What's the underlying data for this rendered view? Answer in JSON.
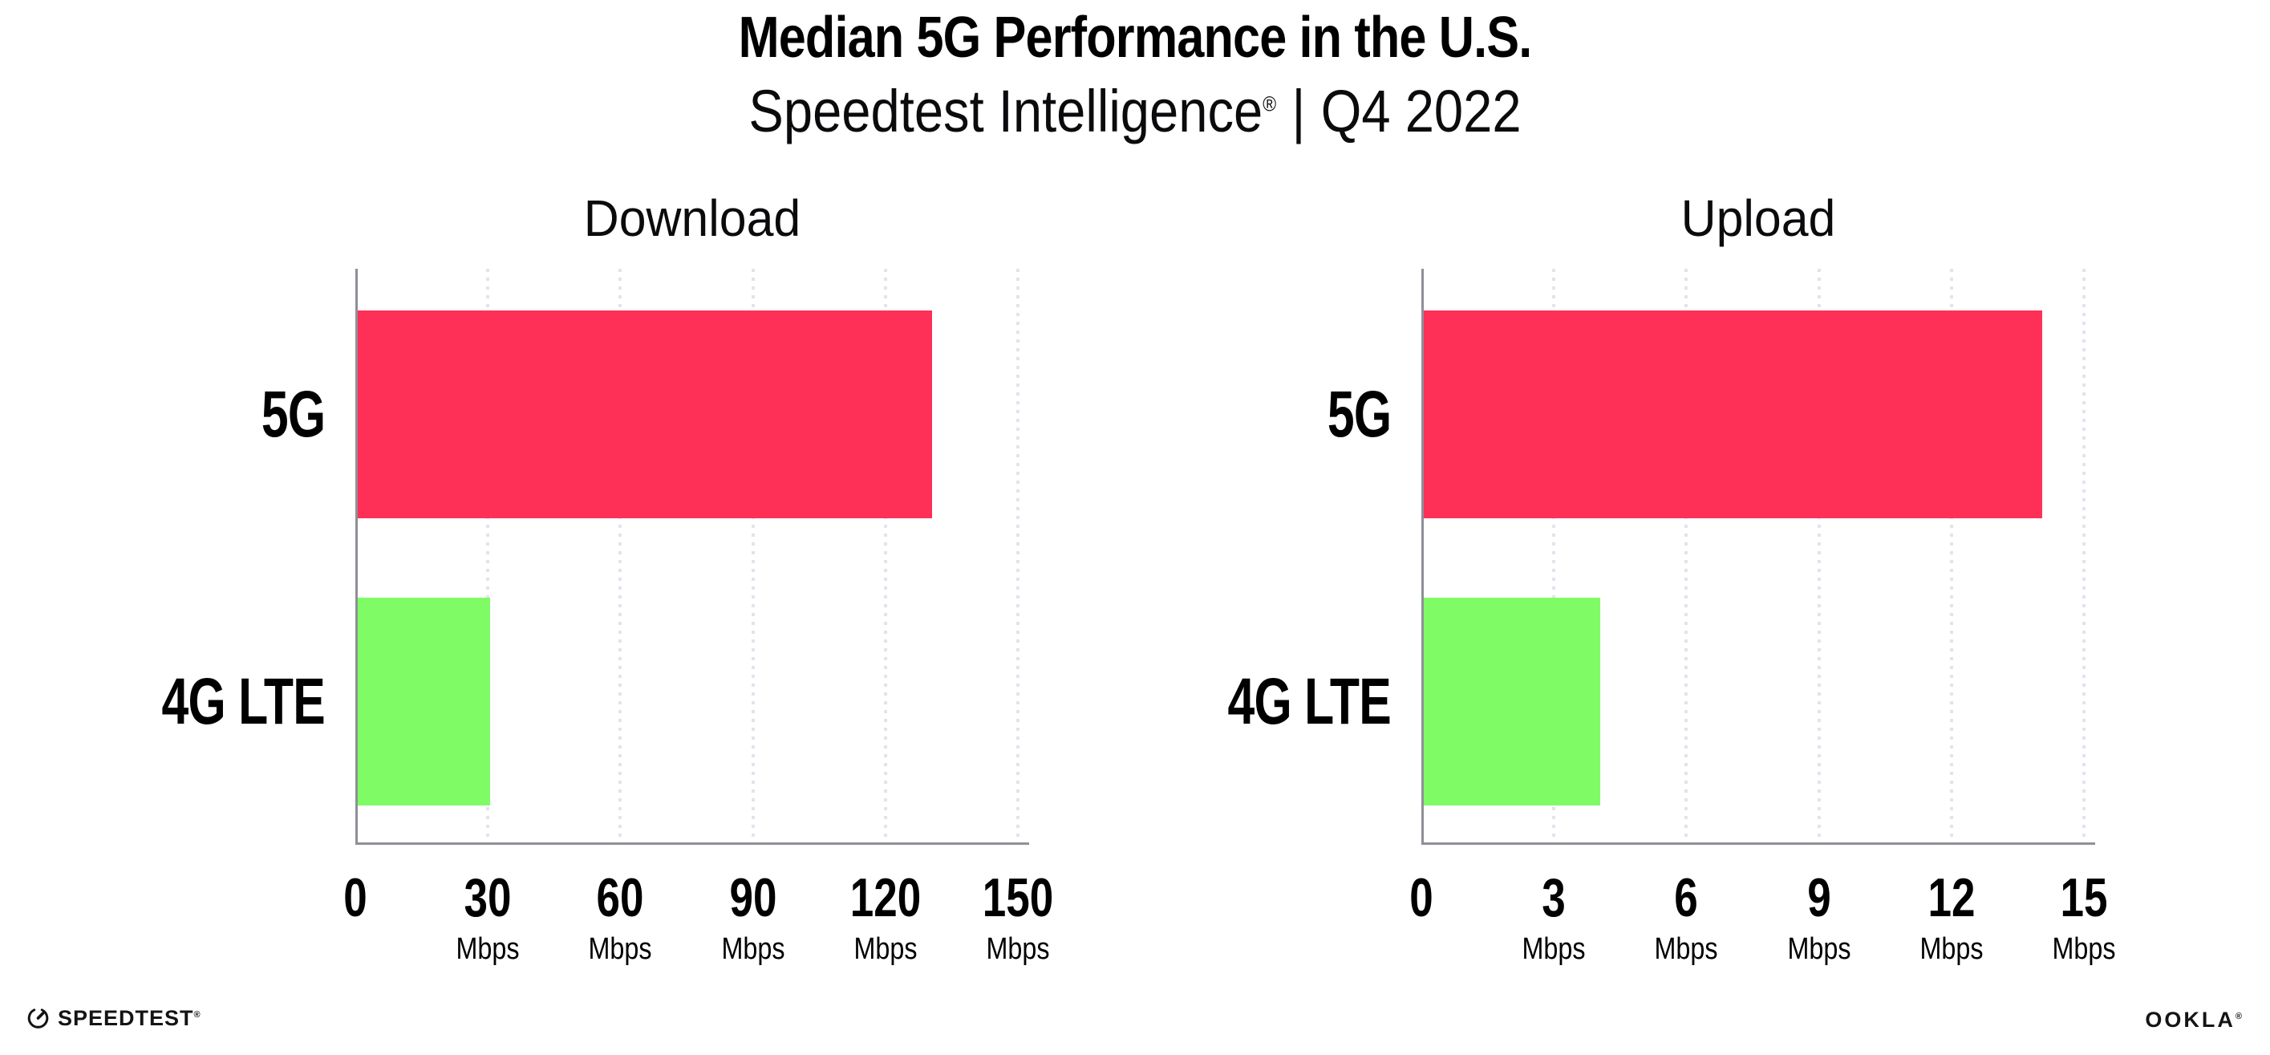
{
  "title": "Median 5G Performance in the U.S.",
  "subtitle": {
    "brand": "Speedtest Intelligence",
    "registered_mark": "®",
    "separator": "|",
    "period": "Q4 2022"
  },
  "footer": {
    "speedtest_label": "SPEEDTEST",
    "speedtest_mark": "®",
    "speedtest_icon": "gauge-icon",
    "ookla_label": "OOKLA",
    "ookla_mark": "®"
  },
  "colors": {
    "bar_5g": "#FF3058",
    "bar_4g_lte": "#7FFB66",
    "axis_line": "#8F8F97",
    "gridline": "#E3E3EE",
    "text": "#000000"
  },
  "chart_data": [
    {
      "type": "bar",
      "orientation": "horizontal",
      "title": "Download",
      "categories": [
        "5G",
        "4G LTE"
      ],
      "values": [
        130,
        30
      ],
      "unit": "Mbps",
      "xlabel": "",
      "ylabel": "",
      "xlim": [
        0,
        150
      ],
      "xticks": [
        0,
        30,
        60,
        90,
        120,
        150
      ],
      "bar_colors": [
        "#FF3058",
        "#7FFB66"
      ],
      "grid": "vertical-dotted",
      "legend": "none"
    },
    {
      "type": "bar",
      "orientation": "horizontal",
      "title": "Upload",
      "categories": [
        "5G",
        "4G LTE"
      ],
      "values": [
        14,
        4
      ],
      "unit": "Mbps",
      "xlabel": "",
      "ylabel": "",
      "xlim": [
        0,
        15
      ],
      "xticks": [
        0,
        3,
        6,
        9,
        12,
        15
      ],
      "bar_colors": [
        "#FF3058",
        "#7FFB66"
      ],
      "grid": "vertical-dotted",
      "legend": "none"
    }
  ]
}
